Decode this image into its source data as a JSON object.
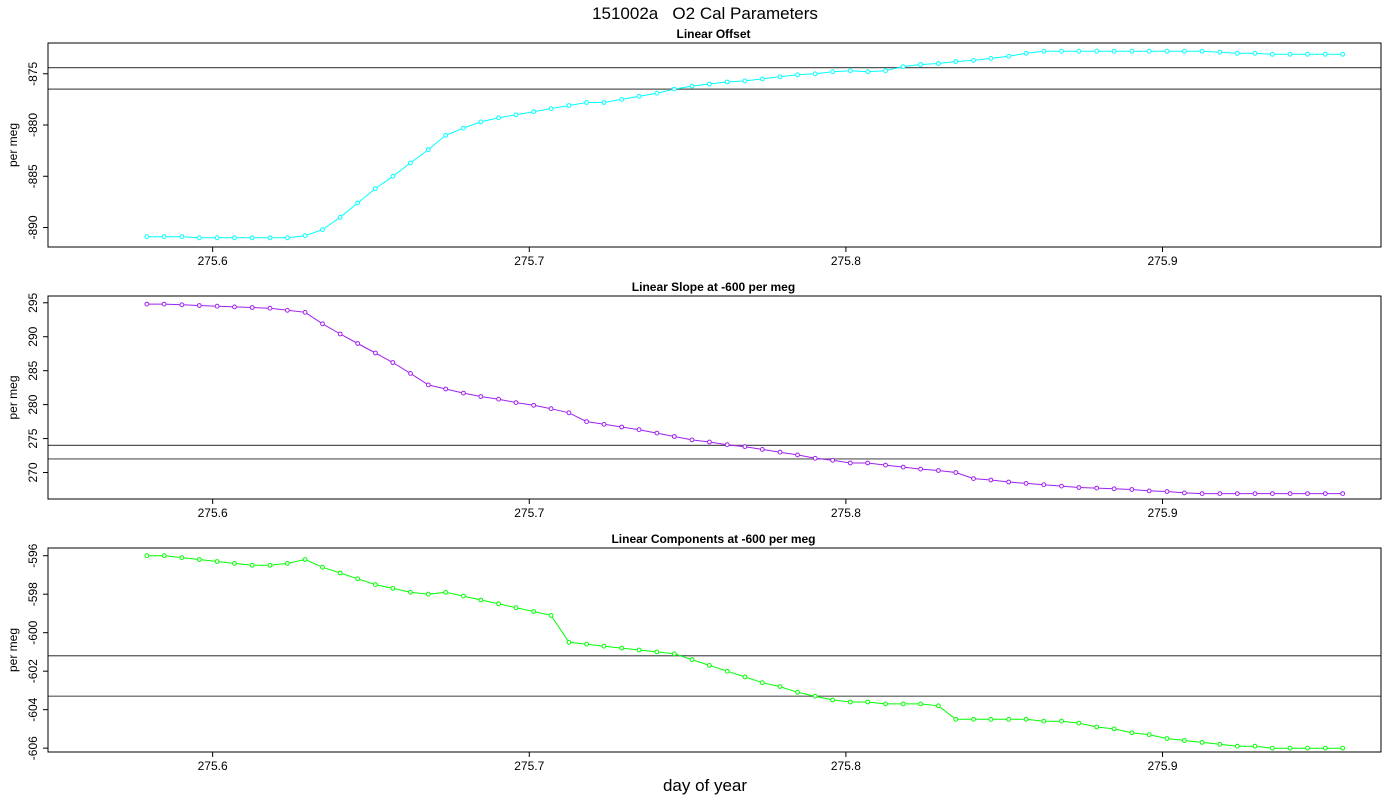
{
  "title": "151002a   O2 Cal Parameters",
  "xlabel": "day of year",
  "chart_data": [
    {
      "type": "line",
      "title": "Linear Offset",
      "ylabel": "per meg",
      "color": "#00ffff",
      "xlim": [
        275.548,
        275.969
      ],
      "ylim": [
        -891.9,
        -872.0
      ],
      "xticks": [
        275.6,
        275.7,
        275.8,
        275.9
      ],
      "xtick_labels": [
        "275.6",
        "275.7",
        "275.8",
        "275.9"
      ],
      "yticks": [
        -875,
        -880,
        -885,
        -890
      ],
      "ytick_labels": [
        "-875",
        "-880",
        "-885",
        "-890"
      ],
      "ref_lines": [
        -874.4,
        -876.5
      ],
      "x": [
        275.5792,
        275.5847,
        275.5903,
        275.5958,
        275.6014,
        275.6069,
        275.6125,
        275.6181,
        275.6236,
        275.6292,
        275.6347,
        275.6403,
        275.6458,
        275.6514,
        275.6569,
        275.6625,
        275.6681,
        275.6736,
        275.6792,
        275.6847,
        275.6903,
        275.6958,
        275.7014,
        275.7069,
        275.7125,
        275.7181,
        275.7236,
        275.7292,
        275.7347,
        275.7403,
        275.7458,
        275.7514,
        275.7569,
        275.7625,
        275.7681,
        275.7736,
        275.7792,
        275.7847,
        275.7903,
        275.7958,
        275.8014,
        275.8069,
        275.8125,
        275.8181,
        275.8236,
        275.8292,
        275.8347,
        275.8403,
        275.8458,
        275.8514,
        275.8569,
        275.8625,
        275.8681,
        275.8736,
        275.8792,
        275.8847,
        275.8903,
        275.8958,
        275.9014,
        275.9069,
        275.9125,
        275.9181,
        275.9236,
        275.9292,
        275.9347,
        275.9403,
        275.9458,
        275.9514,
        275.9569
      ],
      "y": [
        -890.9,
        -890.9,
        -890.9,
        -891.0,
        -891.0,
        -891.0,
        -891.0,
        -891.0,
        -891.0,
        -890.8,
        -890.2,
        -889.0,
        -887.6,
        -886.2,
        -885.0,
        -883.7,
        -882.4,
        -881.0,
        -880.3,
        -879.7,
        -879.3,
        -879.0,
        -878.7,
        -878.4,
        -878.1,
        -877.8,
        -877.8,
        -877.5,
        -877.2,
        -876.9,
        -876.5,
        -876.2,
        -876.0,
        -875.8,
        -875.7,
        -875.5,
        -875.3,
        -875.1,
        -875.0,
        -874.8,
        -874.7,
        -874.8,
        -874.7,
        -874.3,
        -874.1,
        -874.0,
        -873.8,
        -873.7,
        -873.5,
        -873.3,
        -873.0,
        -872.8,
        -872.8,
        -872.8,
        -872.8,
        -872.8,
        -872.8,
        -872.8,
        -872.8,
        -872.8,
        -872.8,
        -872.9,
        -873.0,
        -873.0,
        -873.1,
        -873.1,
        -873.1,
        -873.1,
        -873.1
      ]
    },
    {
      "type": "line",
      "title": "Linear Slope at -600 per meg",
      "ylabel": "per meg",
      "color": "#a020f0",
      "xlim": [
        275.548,
        275.969
      ],
      "ylim": [
        266.1,
        296.0
      ],
      "xticks": [
        275.6,
        275.7,
        275.8,
        275.9
      ],
      "xtick_labels": [
        "275.6",
        "275.7",
        "275.8",
        "275.9"
      ],
      "yticks": [
        270,
        275,
        280,
        285,
        290,
        295
      ],
      "ytick_labels": [
        "270",
        "275",
        "280",
        "285",
        "290",
        "295"
      ],
      "ref_lines": [
        274.0,
        272.0
      ],
      "x": [
        275.5792,
        275.5847,
        275.5903,
        275.5958,
        275.6014,
        275.6069,
        275.6125,
        275.6181,
        275.6236,
        275.6292,
        275.6347,
        275.6403,
        275.6458,
        275.6514,
        275.6569,
        275.6625,
        275.6681,
        275.6736,
        275.6792,
        275.6847,
        275.6903,
        275.6958,
        275.7014,
        275.7069,
        275.7125,
        275.7181,
        275.7236,
        275.7292,
        275.7347,
        275.7403,
        275.7458,
        275.7514,
        275.7569,
        275.7625,
        275.7681,
        275.7736,
        275.7792,
        275.7847,
        275.7903,
        275.7958,
        275.8014,
        275.8069,
        275.8125,
        275.8181,
        275.8236,
        275.8292,
        275.8347,
        275.8403,
        275.8458,
        275.8514,
        275.8569,
        275.8625,
        275.8681,
        275.8736,
        275.8792,
        275.8847,
        275.8903,
        275.8958,
        275.9014,
        275.9069,
        275.9125,
        275.9181,
        275.9236,
        275.9292,
        275.9347,
        275.9403,
        275.9458,
        275.9514,
        275.9569
      ],
      "y": [
        294.8,
        294.8,
        294.7,
        294.6,
        294.5,
        294.4,
        294.3,
        294.2,
        293.9,
        293.6,
        291.9,
        290.4,
        289.0,
        287.6,
        286.2,
        284.6,
        282.9,
        282.3,
        281.7,
        281.2,
        280.8,
        280.3,
        279.9,
        279.4,
        278.8,
        277.5,
        277.1,
        276.7,
        276.3,
        275.8,
        275.3,
        274.8,
        274.5,
        274.1,
        273.8,
        273.4,
        273.0,
        272.6,
        272.1,
        271.8,
        271.4,
        271.4,
        271.1,
        270.8,
        270.5,
        270.3,
        270.0,
        269.1,
        268.9,
        268.6,
        268.4,
        268.2,
        268.0,
        267.8,
        267.7,
        267.6,
        267.5,
        267.3,
        267.2,
        267.0,
        266.9,
        266.9,
        266.9,
        266.9,
        266.9,
        266.9,
        266.9,
        266.9,
        266.9
      ]
    },
    {
      "type": "line",
      "title": "Linear Components at -600 per meg",
      "ylabel": "per meg",
      "color": "#00ff00",
      "xlim": [
        275.548,
        275.969
      ],
      "ylim": [
        -606.2,
        -595.6
      ],
      "xticks": [
        275.6,
        275.7,
        275.8,
        275.9
      ],
      "xtick_labels": [
        "275.6",
        "275.7",
        "275.8",
        "275.9"
      ],
      "yticks": [
        -596,
        -598,
        -600,
        -602,
        -604,
        -606
      ],
      "ytick_labels": [
        "-596",
        "-598",
        "-600",
        "-602",
        "-604",
        "-606"
      ],
      "ref_lines": [
        -601.2,
        -603.3
      ],
      "x": [
        275.5792,
        275.5847,
        275.5903,
        275.5958,
        275.6014,
        275.6069,
        275.6125,
        275.6181,
        275.6236,
        275.6292,
        275.6347,
        275.6403,
        275.6458,
        275.6514,
        275.6569,
        275.6625,
        275.6681,
        275.6736,
        275.6792,
        275.6847,
        275.6903,
        275.6958,
        275.7014,
        275.7069,
        275.7125,
        275.7181,
        275.7236,
        275.7292,
        275.7347,
        275.7403,
        275.7458,
        275.7514,
        275.7569,
        275.7625,
        275.7681,
        275.7736,
        275.7792,
        275.7847,
        275.7903,
        275.7958,
        275.8014,
        275.8069,
        275.8125,
        275.8181,
        275.8236,
        275.8292,
        275.8347,
        275.8403,
        275.8458,
        275.8514,
        275.8569,
        275.8625,
        275.8681,
        275.8736,
        275.8792,
        275.8847,
        275.8903,
        275.8958,
        275.9014,
        275.9069,
        275.9125,
        275.9181,
        275.9236,
        275.9292,
        275.9347,
        275.9403,
        275.9458,
        275.9514,
        275.9569
      ],
      "y": [
        -596.0,
        -596.0,
        -596.1,
        -596.2,
        -596.3,
        -596.4,
        -596.5,
        -596.5,
        -596.4,
        -596.2,
        -596.6,
        -596.9,
        -597.2,
        -597.5,
        -597.7,
        -597.9,
        -598.0,
        -597.9,
        -598.1,
        -598.3,
        -598.5,
        -598.7,
        -598.9,
        -599.1,
        -600.5,
        -600.6,
        -600.7,
        -600.8,
        -600.9,
        -601.0,
        -601.1,
        -601.4,
        -601.7,
        -602.0,
        -602.3,
        -602.6,
        -602.8,
        -603.1,
        -603.3,
        -603.5,
        -603.6,
        -603.6,
        -603.7,
        -603.7,
        -603.7,
        -603.8,
        -604.5,
        -604.5,
        -604.5,
        -604.5,
        -604.5,
        -604.6,
        -604.6,
        -604.7,
        -604.9,
        -605.0,
        -605.2,
        -605.3,
        -605.5,
        -605.6,
        -605.7,
        -605.8,
        -605.9,
        -605.9,
        -606.0,
        -606.0,
        -606.0,
        -606.0,
        -606.0
      ]
    }
  ]
}
